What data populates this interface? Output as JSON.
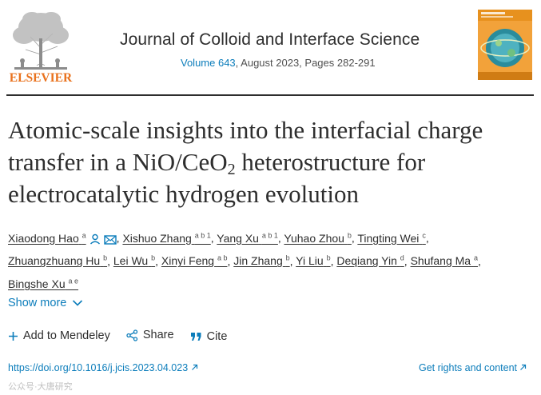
{
  "publisher": {
    "name": "ELSEVIER"
  },
  "journal": {
    "title": "Journal of Colloid and Interface Science",
    "volume_link": "Volume 643",
    "issue_info": ", August 2023, Pages 282-291"
  },
  "article": {
    "title_part1": "Atomic-scale insights into the interfacial charge transfer in a NiO/CeO",
    "title_sub": "2",
    "title_part2": " heterostructure for electrocatalytic hydrogen evolution"
  },
  "authors": [
    {
      "name": "Xiaodong Hao",
      "sup": "a"
    },
    {
      "name": "Xishuo Zhang",
      "sup": "a b 1"
    },
    {
      "name": "Yang Xu",
      "sup": "a b 1"
    },
    {
      "name": "Yuhao Zhou",
      "sup": "b"
    },
    {
      "name": "Tingting Wei",
      "sup": "c"
    },
    {
      "name": "Zhuangzhuang Hu",
      "sup": "b"
    },
    {
      "name": "Lei Wu",
      "sup": "b"
    },
    {
      "name": "Xinyi Feng",
      "sup": "a b"
    },
    {
      "name": "Jin Zhang",
      "sup": "b"
    },
    {
      "name": "Yi Liu",
      "sup": "b"
    },
    {
      "name": "Deqiang Yin",
      "sup": "d"
    },
    {
      "name": "Shufang Ma",
      "sup": "a"
    },
    {
      "name": "Bingshe Xu",
      "sup": "a e"
    }
  ],
  "show_more": "Show more",
  "actions": {
    "mendeley": "Add to Mendeley",
    "share": "Share",
    "cite": "Cite"
  },
  "links": {
    "doi": "https://doi.org/10.1016/j.jcis.2023.04.023",
    "rights": "Get rights and content"
  },
  "watermark": "公众号·大唐研究",
  "colors": {
    "link": "#0c7dbb",
    "text": "#2e2e2e",
    "elsevier_orange": "#e9711c"
  },
  "icons": [
    "person-icon",
    "envelope-icon",
    "chevron-down-icon",
    "plus-icon",
    "share-icon",
    "quote-icon",
    "external-link-icon"
  ]
}
